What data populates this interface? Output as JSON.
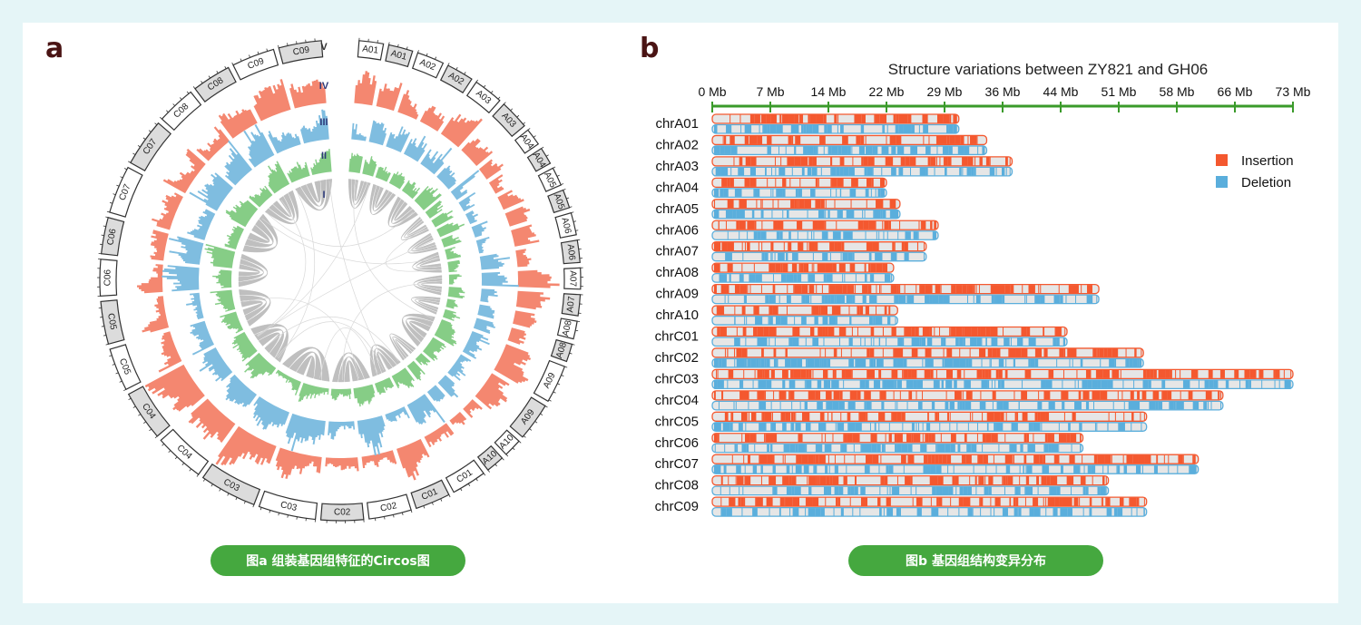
{
  "panels": {
    "a_letter": "a",
    "b_letter": "b"
  },
  "captions": {
    "a": "图a 组装基因组特征的Circos图",
    "b": "图b 基因组结构变异分布"
  },
  "colors": {
    "insertion": "#f4582f",
    "deletion": "#5aaedc",
    "track_iv": "#f48770",
    "track_iii": "#7fbde0",
    "track_ii": "#86cd86",
    "links": "#a9a9a9",
    "axis": "#3a9a2a",
    "caption_bg": "#45a83f",
    "background": "#e5f5f7"
  },
  "chart_data": [
    {
      "type": "circos",
      "track_labels": [
        "V",
        "IV",
        "III",
        "II",
        "I"
      ],
      "segments": [
        "A01",
        "A01",
        "A02",
        "A02",
        "A03",
        "A03",
        "A04",
        "A04",
        "A05",
        "A05",
        "A06",
        "A06",
        "A07",
        "A07",
        "A08",
        "A08",
        "A09",
        "A09",
        "A10",
        "A10",
        "C01",
        "C01",
        "C02",
        "C02",
        "C03",
        "C03",
        "C04",
        "C04",
        "C05",
        "C05",
        "C06",
        "C06",
        "C07",
        "C07",
        "C08",
        "C08",
        "C09",
        "C09"
      ],
      "segment_styles": [
        "white",
        "gray"
      ]
    },
    {
      "type": "bar",
      "title": "Structure variations between ZY821 and GH06",
      "x_ticks": [
        "0 Mb",
        "7 Mb",
        "14 Mb",
        "22 Mb",
        "29 Mb",
        "36 Mb",
        "44 Mb",
        "51 Mb",
        "58 Mb",
        "66 Mb",
        "73 Mb"
      ],
      "xlim": [
        0,
        73
      ],
      "categories": [
        "chrA01",
        "chrA02",
        "chrA03",
        "chrA04",
        "chrA05",
        "chrA06",
        "chrA07",
        "chrA08",
        "chrA09",
        "chrA10",
        "chrC01",
        "chrC02",
        "chrC03",
        "chrC04",
        "chrC05",
        "chrC06",
        "chrC07",
        "chrC08",
        "chrC09"
      ],
      "lengths_mb": [
        31.0,
        34.5,
        37.7,
        21.9,
        23.6,
        28.4,
        26.9,
        22.8,
        48.6,
        23.3,
        44.6,
        54.2,
        73.0,
        64.2,
        54.6,
        46.6,
        61.1,
        49.8,
        54.6
      ],
      "series": [
        {
          "name": "Insertion"
        },
        {
          "name": "Deletion"
        }
      ],
      "legend_position": "right"
    }
  ]
}
